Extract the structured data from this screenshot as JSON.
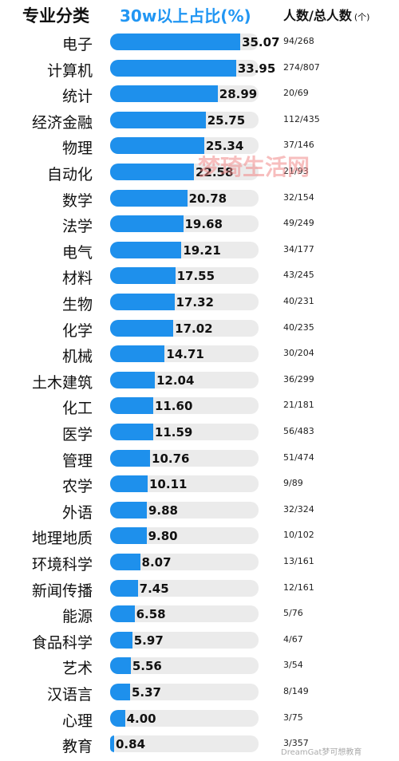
{
  "header": {
    "major_label": "专业分类",
    "pct_label": "30w以上占比(%)",
    "count_label": "人数/总人数",
    "count_unit": "(个)"
  },
  "watermark": "梦琦生活网",
  "credit": "DreamGat梦可想教育",
  "chart_data": {
    "type": "bar",
    "orientation": "horizontal",
    "xlim": [
      0,
      40
    ],
    "categories": [
      "电子",
      "计算机",
      "统计",
      "经济金融",
      "物理",
      "自动化",
      "数学",
      "法学",
      "电气",
      "材料",
      "生物",
      "化学",
      "机械",
      "土木建筑",
      "化工",
      "医学",
      "管理",
      "农学",
      "外语",
      "地理地质",
      "环境科学",
      "新闻传播",
      "能源",
      "食品科学",
      "艺术",
      "汉语言",
      "心理",
      "教育"
    ],
    "values": [
      35.07,
      33.95,
      28.99,
      25.75,
      25.34,
      22.58,
      20.78,
      19.68,
      19.21,
      17.55,
      17.32,
      17.02,
      14.71,
      12.04,
      11.6,
      11.59,
      10.76,
      10.11,
      9.88,
      9.8,
      8.07,
      7.45,
      6.58,
      5.97,
      5.56,
      5.37,
      4.0,
      0.84
    ],
    "value_labels": [
      "35.07",
      "33.95",
      "28.99",
      "25.75",
      "25.34",
      "22.58",
      "20.78",
      "19.68",
      "19.21",
      "17.55",
      "17.32",
      "17.02",
      "14.71",
      "12.04",
      "11.60",
      "11.59",
      "10.76",
      "10.11",
      "9.88",
      "9.80",
      "8.07",
      "7.45",
      "6.58",
      "5.97",
      "5.56",
      "5.37",
      "4.00",
      "0.84"
    ],
    "counts": [
      "94/268",
      "274/807",
      "20/69",
      "112/435",
      "37/146",
      "21/93",
      "32/154",
      "49/249",
      "34/177",
      "43/245",
      "40/231",
      "40/235",
      "30/204",
      "36/299",
      "21/181",
      "56/483",
      "51/474",
      "9/89",
      "32/324",
      "10/102",
      "13/161",
      "12/161",
      "5/76",
      "4/67",
      "3/54",
      "8/149",
      "3/75",
      "3/357"
    ],
    "colors": {
      "bar": "#1e90ec",
      "track": "#ebebeb",
      "header_accent": "#2196f3"
    }
  }
}
